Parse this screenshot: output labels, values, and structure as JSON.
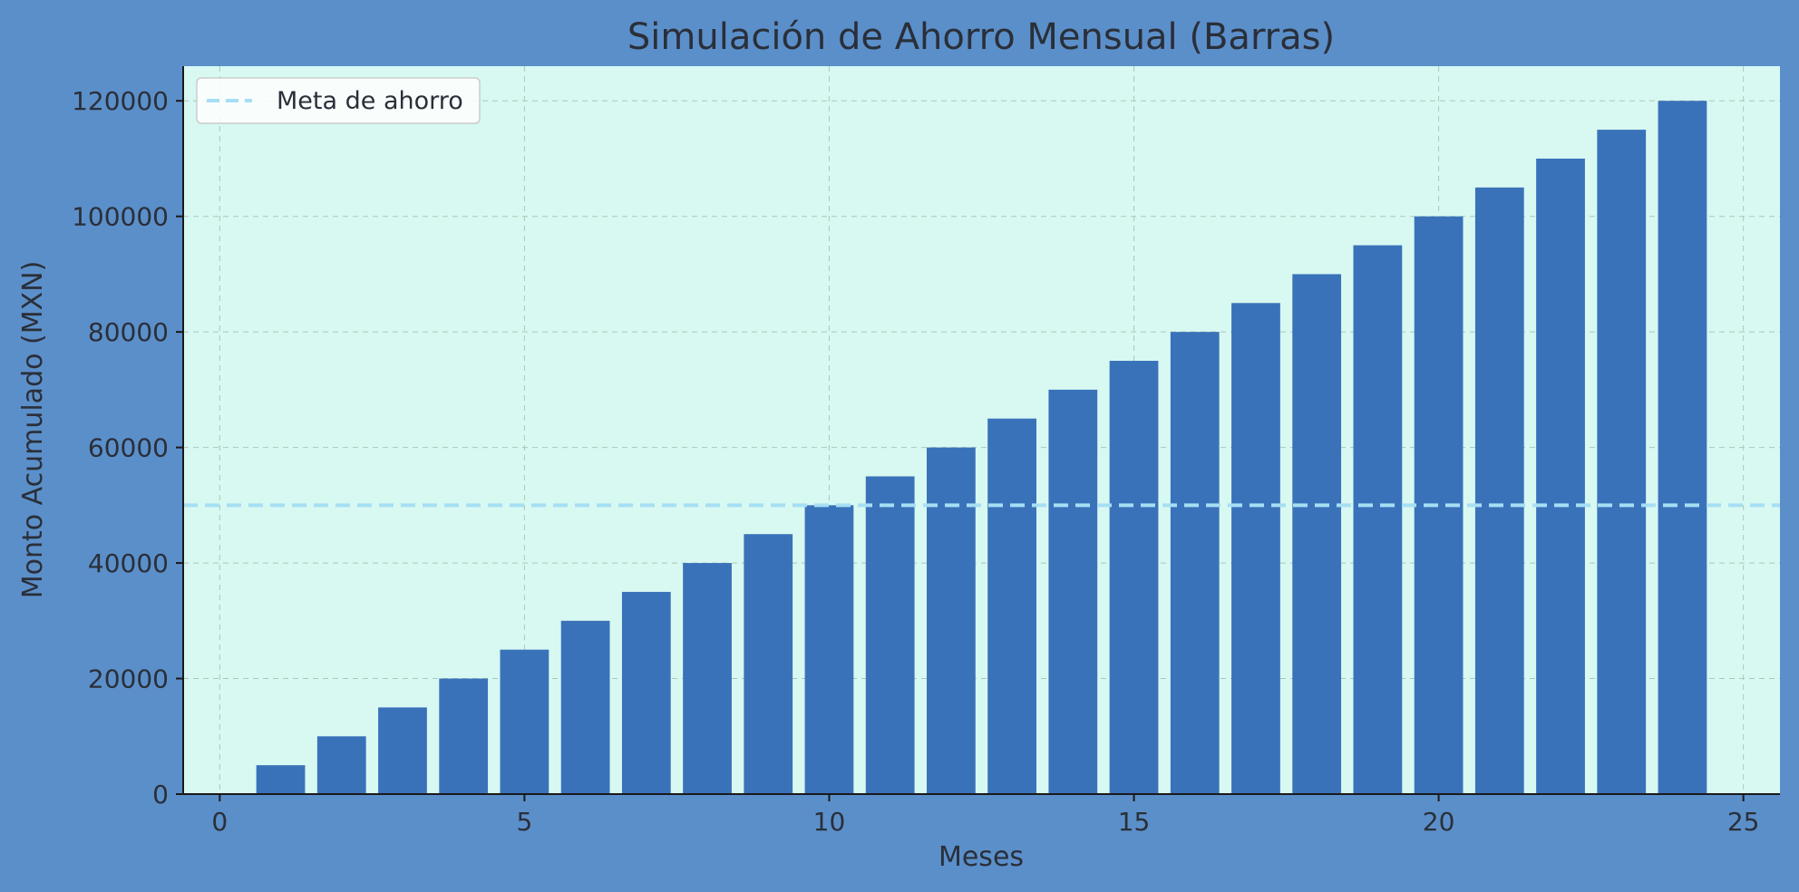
{
  "colors": {
    "figure_bg": "#5b8fca",
    "plot_bg": "#d8f8f2",
    "bar": "#3a72ba",
    "goal_line": "#a6dff3",
    "grid": "#a9c9b8",
    "text": "#2a2f38"
  },
  "chart_data": {
    "type": "bar",
    "title": "Simulación de Ahorro Mensual (Barras)",
    "xlabel": "Meses",
    "ylabel": "Monto Acumulado (MXN)",
    "x": [
      1,
      2,
      3,
      4,
      5,
      6,
      7,
      8,
      9,
      10,
      11,
      12,
      13,
      14,
      15,
      16,
      17,
      18,
      19,
      20,
      21,
      22,
      23,
      24
    ],
    "values": [
      5000,
      10000,
      15000,
      20000,
      25000,
      30000,
      35000,
      40000,
      45000,
      50000,
      55000,
      60000,
      65000,
      70000,
      75000,
      80000,
      85000,
      90000,
      95000,
      100000,
      105000,
      110000,
      115000,
      120000
    ],
    "bar_width": 0.8,
    "xlim": [
      -0.6,
      25.6
    ],
    "ylim": [
      0,
      126000
    ],
    "xticks": [
      0,
      5,
      10,
      15,
      20,
      25
    ],
    "yticks": [
      0,
      20000,
      40000,
      60000,
      80000,
      100000,
      120000
    ],
    "goal": {
      "value": 50000,
      "label": "Meta de ahorro",
      "style": "dashed"
    },
    "grid": true,
    "legend": {
      "position": "top-left",
      "entries": [
        "Meta de ahorro"
      ]
    }
  }
}
